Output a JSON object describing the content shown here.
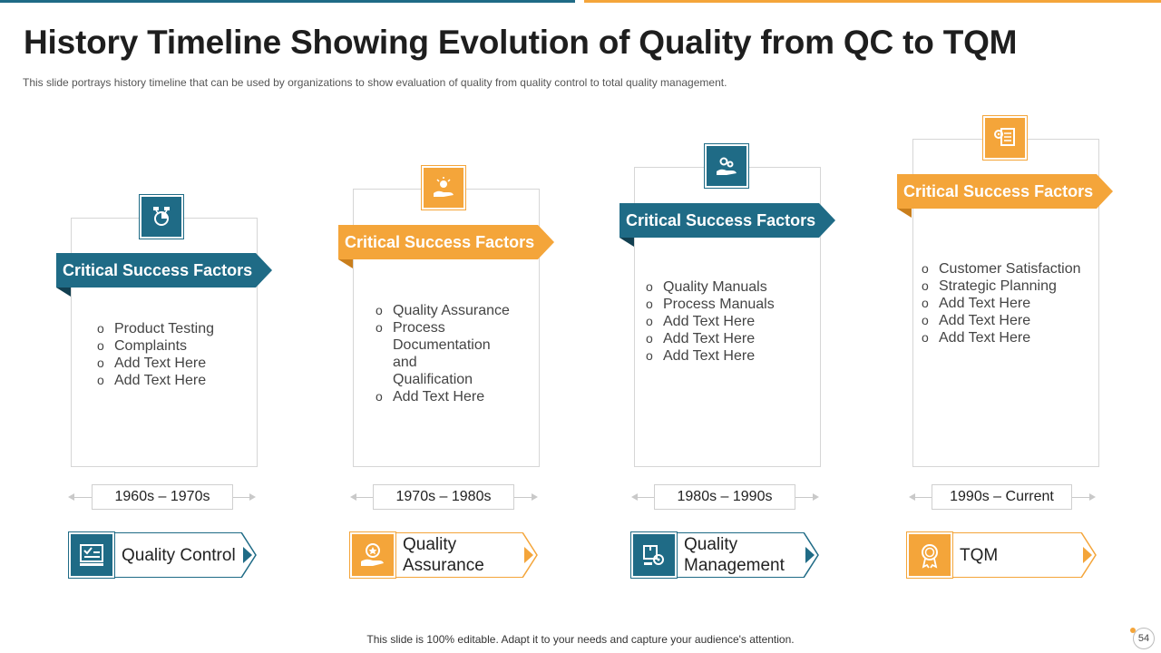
{
  "header": {
    "title": "History Timeline Showing Evolution of Quality from QC to TQM",
    "subtitle": "This slide portrays history timeline that can be used by organizations to show evaluation  of quality from  quality control to total quality management."
  },
  "colors": {
    "blue": "#1f6b86",
    "orange": "#f4a53a"
  },
  "columns": [
    {
      "banner": "Critical Success Factors",
      "icon": "analytics-icon",
      "factors": [
        "Product Testing",
        "Complaints",
        "Add Text Here",
        "Add Text Here"
      ],
      "period": "1960s – 1970s",
      "era": "Quality Control",
      "era_icon": "inspection-checklist-icon"
    },
    {
      "banner": "Critical Success Factors",
      "icon": "idea-hand-icon",
      "factors": [
        "Quality Assurance",
        "Process Documentation and Qualification",
        "Add Text Here"
      ],
      "period": "1970s – 1980s",
      "era": "Quality Assurance",
      "era_icon": "star-hand-icon"
    },
    {
      "banner": "Critical Success Factors",
      "icon": "gears-hand-icon",
      "factors": [
        "Quality Manuals",
        "Process Manuals",
        "Add Text Here",
        "Add Text Here",
        "Add Text Here"
      ],
      "period": "1980s – 1990s",
      "era": "Quality Management",
      "era_icon": "box-gear-icon"
    },
    {
      "banner": "Critical Success Factors",
      "icon": "gear-document-icon",
      "factors": [
        "Customer Satisfaction",
        "Strategic Planning",
        "Add Text Here",
        "Add Text Here",
        "Add Text Here"
      ],
      "period": "1990s – Current",
      "era": "TQM",
      "era_icon": "award-badge-icon"
    }
  ],
  "footer": {
    "note": "This slide is 100% editable. Adapt it to your needs and capture your audience's attention.",
    "page_number": "54"
  }
}
